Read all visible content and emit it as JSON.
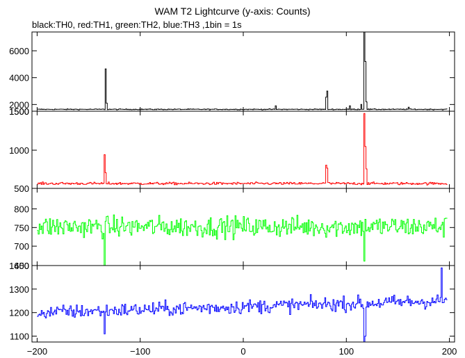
{
  "chart_data": {
    "type": "line",
    "title": "WAM T2 Lightcurve (y-axis: Counts)",
    "subtitle": "black:TH0, red:TH1, green:TH2, blue:TH3 ,1bin = 1s",
    "xlabel": "",
    "xlim": [
      -205,
      205
    ],
    "xticks": [
      -200,
      -100,
      0,
      100,
      200
    ],
    "xtick_labels": [
      "−200",
      "−100",
      "0",
      "100",
      "200"
    ],
    "grid": false,
    "panels": [
      {
        "name": "TH0",
        "color": "#000000",
        "ylim": [
          1500,
          7400
        ],
        "yticks": [
          2000,
          4000,
          6000
        ],
        "ytick_labels": [
          "2000",
          "4000",
          "6000"
        ],
        "bottom_label": "1500",
        "baseline": 1640,
        "noise": 35,
        "spikes": [
          [
            -134,
            4650
          ],
          [
            -133,
            2100
          ],
          [
            31,
            1900
          ],
          [
            80,
            2550
          ],
          [
            81,
            3000
          ],
          [
            103,
            1900
          ],
          [
            114,
            2000
          ],
          [
            117,
            7400
          ],
          [
            118,
            5200
          ],
          [
            119,
            2200
          ],
          [
            160,
            1800
          ]
        ]
      },
      {
        "name": "TH1",
        "color": "#ff0000",
        "ylim": [
          490,
          1520
        ],
        "yticks": [
          1000
        ],
        "ytick_labels": [
          "1000"
        ],
        "bottom_label": "500",
        "top_label": "1500",
        "baseline": 555,
        "noise": 18,
        "spikes": [
          [
            -135,
            940
          ],
          [
            -134,
            700
          ],
          [
            80,
            800
          ],
          [
            81,
            760
          ],
          [
            117,
            1490
          ],
          [
            118,
            1050
          ],
          [
            119,
            750
          ]
        ]
      },
      {
        "name": "TH2",
        "color": "#00ff00",
        "ylim": [
          648,
          855
        ],
        "yticks": [
          700,
          750,
          800
        ],
        "ytick_labels": [
          "700",
          "750",
          "800"
        ],
        "bottom_label": "650",
        "baseline": 752,
        "noise": 30,
        "spikes": [
          [
            -135,
            648
          ],
          [
            117,
            660
          ]
        ]
      },
      {
        "name": "TH3",
        "color": "#0000ff",
        "ylim": [
          1075,
          1400
        ],
        "yticks": [
          1100,
          1200,
          1300
        ],
        "ytick_labels": [
          "1100",
          "1200",
          "1300"
        ],
        "top_label": "1400",
        "baseline_start": 1200,
        "baseline_end": 1250,
        "noise": 32,
        "spikes": [
          [
            -135,
            1110
          ],
          [
            117,
            1075
          ],
          [
            118,
            1100
          ],
          [
            192,
            1390
          ]
        ]
      }
    ]
  }
}
